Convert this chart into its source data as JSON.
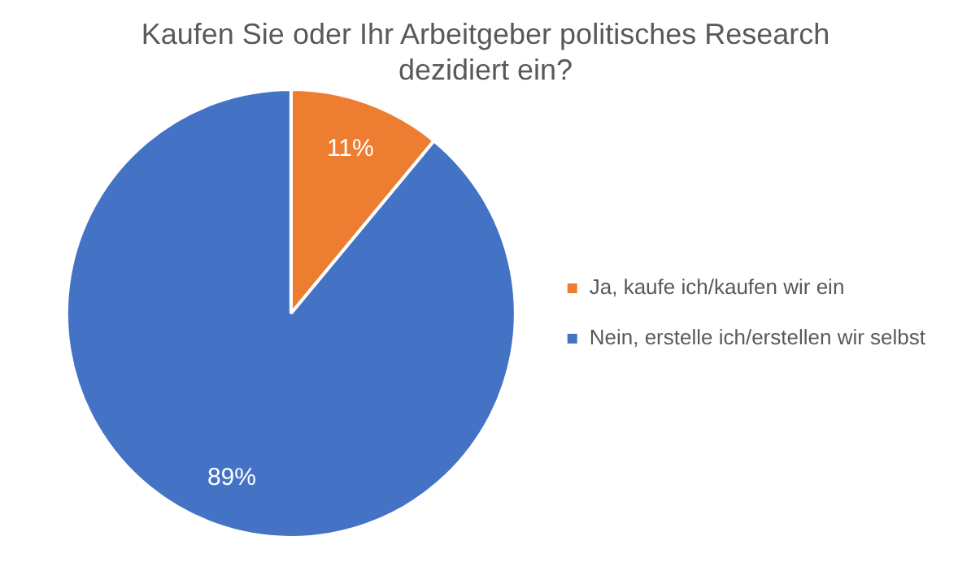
{
  "chart_data": {
    "type": "pie",
    "title": "Kaufen Sie oder Ihr Arbeitgeber politisches Research dezidiert ein?",
    "categories": [
      "Ja, kaufe ich/kaufen wir ein",
      "Nein, erstelle ich/erstellen wir selbst"
    ],
    "values": [
      11,
      89
    ],
    "colors": [
      "#ed7d31",
      "#4472c4"
    ],
    "value_labels": [
      "11%",
      "89%"
    ],
    "legend": "right"
  }
}
